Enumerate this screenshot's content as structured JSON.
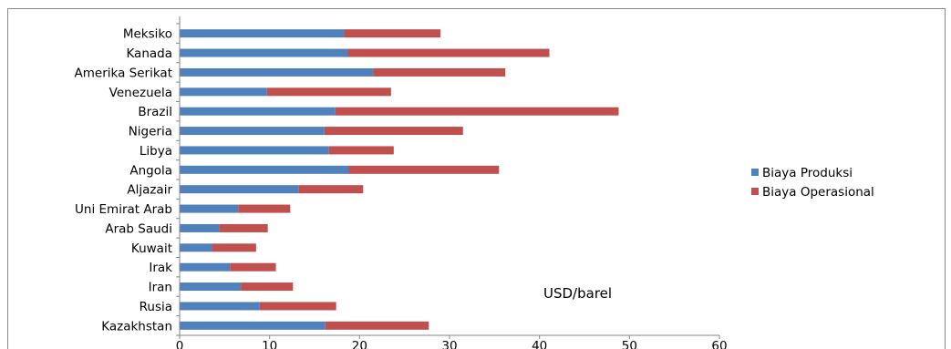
{
  "chart_data": {
    "type": "bar",
    "orientation": "horizontal",
    "stacked": true,
    "categories": [
      "Meksiko",
      "Kanada",
      "Amerika Serikat",
      "Venezuela",
      "Brazil",
      "Nigeria",
      "Libya",
      "Angola",
      "Aljazair",
      "Uni Emirat Arab",
      "Arab Saudi",
      "Kuwait",
      "Irak",
      "Iran",
      "Rusia",
      "Kazakhstan"
    ],
    "series": [
      {
        "name": "Biaya Produksi",
        "color": "#4F81BD",
        "values": [
          18.3,
          18.7,
          21.5,
          9.7,
          17.3,
          16.1,
          16.6,
          18.8,
          13.2,
          6.5,
          4.4,
          3.6,
          5.6,
          6.8,
          8.9,
          16.2
        ]
      },
      {
        "name": "Biaya Operasional",
        "color": "#C0504D",
        "values": [
          10.7,
          22.4,
          14.7,
          13.8,
          31.5,
          15.4,
          7.2,
          16.7,
          7.2,
          5.8,
          5.4,
          4.9,
          5.1,
          5.8,
          8.5,
          11.5
        ]
      }
    ],
    "xlim": [
      0,
      60
    ],
    "xticks": [
      0,
      10,
      20,
      30,
      40,
      50,
      60
    ],
    "legend_position": "right",
    "annotation": "USD/barel",
    "grid": false
  }
}
